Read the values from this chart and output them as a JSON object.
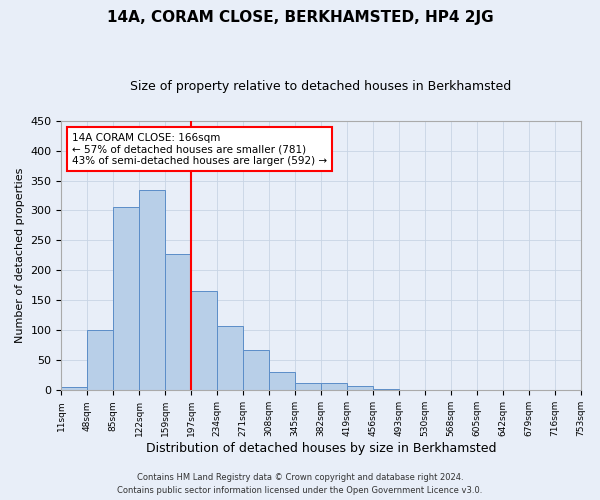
{
  "title": "14A, CORAM CLOSE, BERKHAMSTED, HP4 2JG",
  "subtitle": "Size of property relative to detached houses in Berkhamsted",
  "xlabel": "Distribution of detached houses by size in Berkhamsted",
  "ylabel": "Number of detached properties",
  "footer1": "Contains HM Land Registry data © Crown copyright and database right 2024.",
  "footer2": "Contains public sector information licensed under the Open Government Licence v3.0.",
  "bin_labels": [
    "11sqm",
    "48sqm",
    "85sqm",
    "122sqm",
    "159sqm",
    "197sqm",
    "234sqm",
    "271sqm",
    "308sqm",
    "345sqm",
    "382sqm",
    "419sqm",
    "456sqm",
    "493sqm",
    "530sqm",
    "568sqm",
    "605sqm",
    "642sqm",
    "679sqm",
    "716sqm",
    "753sqm"
  ],
  "bar_values": [
    5,
    100,
    305,
    335,
    227,
    165,
    107,
    68,
    30,
    12,
    12,
    7,
    2,
    1,
    0,
    0,
    0,
    0,
    0,
    0
  ],
  "bar_color": "#b8cfe8",
  "bar_edge_color": "#5b8dc8",
  "grid_color": "#c8d4e4",
  "vline_color": "red",
  "annotation_text": "14A CORAM CLOSE: 166sqm\n← 57% of detached houses are smaller (781)\n43% of semi-detached houses are larger (592) →",
  "annotation_bbox_color": "white",
  "annotation_bbox_edge": "red",
  "ylim": [
    0,
    450
  ],
  "yticks": [
    0,
    50,
    100,
    150,
    200,
    250,
    300,
    350,
    400,
    450
  ],
  "background_color": "#e8eef8",
  "title_fontsize": 11,
  "subtitle_fontsize": 9,
  "ylabel_fontsize": 8,
  "xlabel_fontsize": 9
}
